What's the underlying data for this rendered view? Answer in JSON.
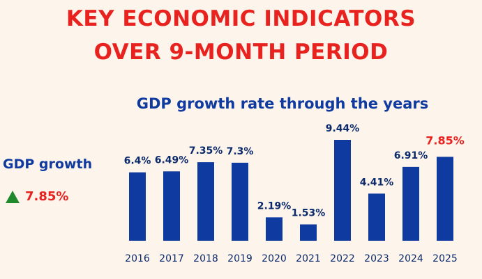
{
  "headline": {
    "line1": "KEY ECONOMIC INDICATORS",
    "line2": "OVER 9-MONTH PERIOD"
  },
  "side": {
    "label": "GDP growth",
    "value": "7.85%",
    "trend": "up",
    "trend_color": "#1e8a2c"
  },
  "colors": {
    "title_red": "#e8231f",
    "bar_blue": "#0f3aa0",
    "text_navy": "#0b2a6b",
    "background": "#fdf4ec"
  },
  "chart_data": {
    "type": "bar",
    "title": "GDP growth rate through the years",
    "categories": [
      "2016",
      "2017",
      "2018",
      "2019",
      "2020",
      "2021",
      "2022",
      "2023",
      "2024",
      "2025"
    ],
    "values": [
      6.4,
      6.49,
      7.35,
      7.3,
      2.19,
      1.53,
      9.44,
      4.41,
      6.91,
      7.85
    ],
    "labels": [
      "6.4%",
      "6.49%",
      "7.35%",
      "7.3%",
      "2.19%",
      "1.53%",
      "9.44%",
      "4.41%",
      "6.91%",
      "7.85%"
    ],
    "highlight_index": 9,
    "xlabel": "",
    "ylabel": "",
    "ylim": [
      0,
      10
    ],
    "grid": false
  }
}
